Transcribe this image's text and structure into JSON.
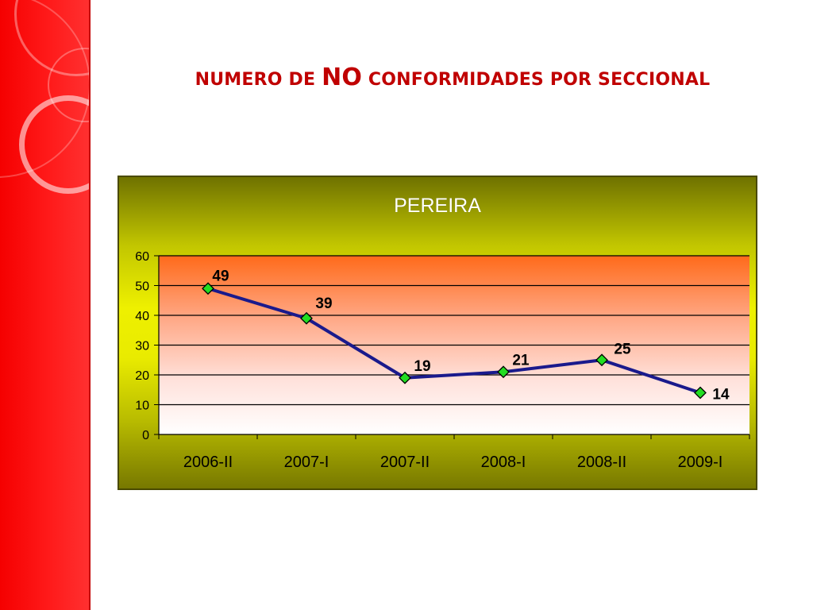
{
  "slide": {
    "title_part1": "NUMERO DE ",
    "title_part2": "NO",
    "title_part3": " CONFORMIDADES POR SECCIONAL"
  },
  "colors": {
    "left_band": "#ff0000",
    "title": "#c00000",
    "series_line": "#1a1a8c",
    "marker": "#22dd22",
    "plot_top": "#ff6a1a",
    "plot_bottom": "#ffffff"
  },
  "chart_data": {
    "type": "line",
    "title": "PEREIRA",
    "categories": [
      "2006-II",
      "2007-I",
      "2007-II",
      "2008-I",
      "2008-II",
      "2009-I"
    ],
    "series": [
      {
        "values": [
          49,
          39,
          19,
          21,
          25,
          14
        ]
      }
    ],
    "data_labels": [
      "49",
      "39",
      "19",
      "21",
      "25",
      "14"
    ],
    "ylim": [
      0,
      60
    ],
    "yticks": [
      0,
      10,
      20,
      30,
      40,
      50,
      60
    ],
    "grid": true,
    "legend": "none",
    "xlabel": "",
    "ylabel": ""
  }
}
